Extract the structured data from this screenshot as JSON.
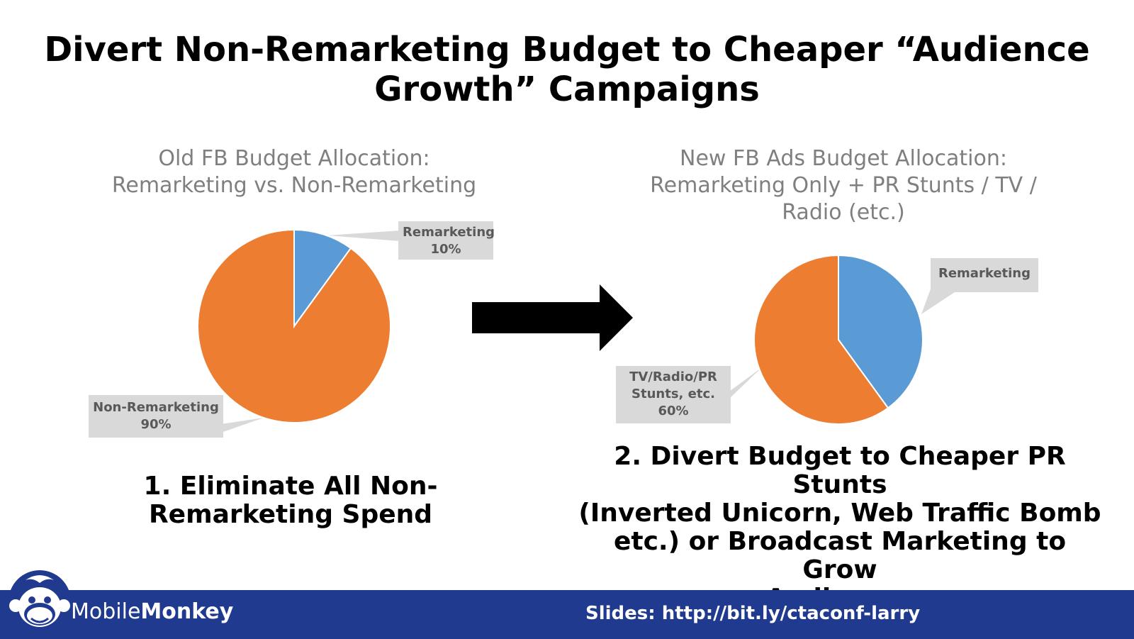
{
  "title": {
    "line1": "Divert Non-Remarketing Budget to Cheaper “Audience",
    "line2": "Growth” Campaigns"
  },
  "chart_data": [
    {
      "type": "pie",
      "title": "Old FB Budget Allocation: Remarketing vs. Non-Remarketing",
      "title_lines": [
        "Old FB Budget Allocation:",
        "Remarketing vs. Non-Remarketing"
      ],
      "slices": [
        {
          "label": "Remarketing",
          "value": 10,
          "value_label": "10%",
          "color": "#5b9bd5"
        },
        {
          "label": "Non-Remarketing",
          "value": 90,
          "value_label": "90%",
          "color": "#ed7d31"
        }
      ]
    },
    {
      "type": "pie",
      "title": "New FB Ads Budget Allocation: Remarketing Only + PR Stunts / TV / Radio (etc.)",
      "title_lines": [
        "New FB Ads Budget Allocation:",
        "Remarketing Only + PR Stunts / TV /",
        "Radio (etc.)"
      ],
      "slices": [
        {
          "label": "Remarketing",
          "value": 40,
          "color": "#5b9bd5"
        },
        {
          "label_lines": [
            "TV/Radio/PR",
            "Stunts, etc."
          ],
          "value": 60,
          "value_label": "60%",
          "color": "#ed7d31"
        }
      ]
    }
  ],
  "steps": {
    "step1": [
      "1. Eliminate All Non-",
      "Remarketing Spend"
    ],
    "step2": [
      "2. Divert Budget to Cheaper PR Stunts",
      "(Inverted Unicorn, Web Traffic Bomb",
      "etc.) or Broadcast Marketing to Grow",
      "Audiences"
    ]
  },
  "footer": {
    "brand_light": "Mobile",
    "brand_bold": "Monkey",
    "slides_link": "Slides: http://bit.ly/ctaconf-larry",
    "background": "#1f3a8f"
  }
}
